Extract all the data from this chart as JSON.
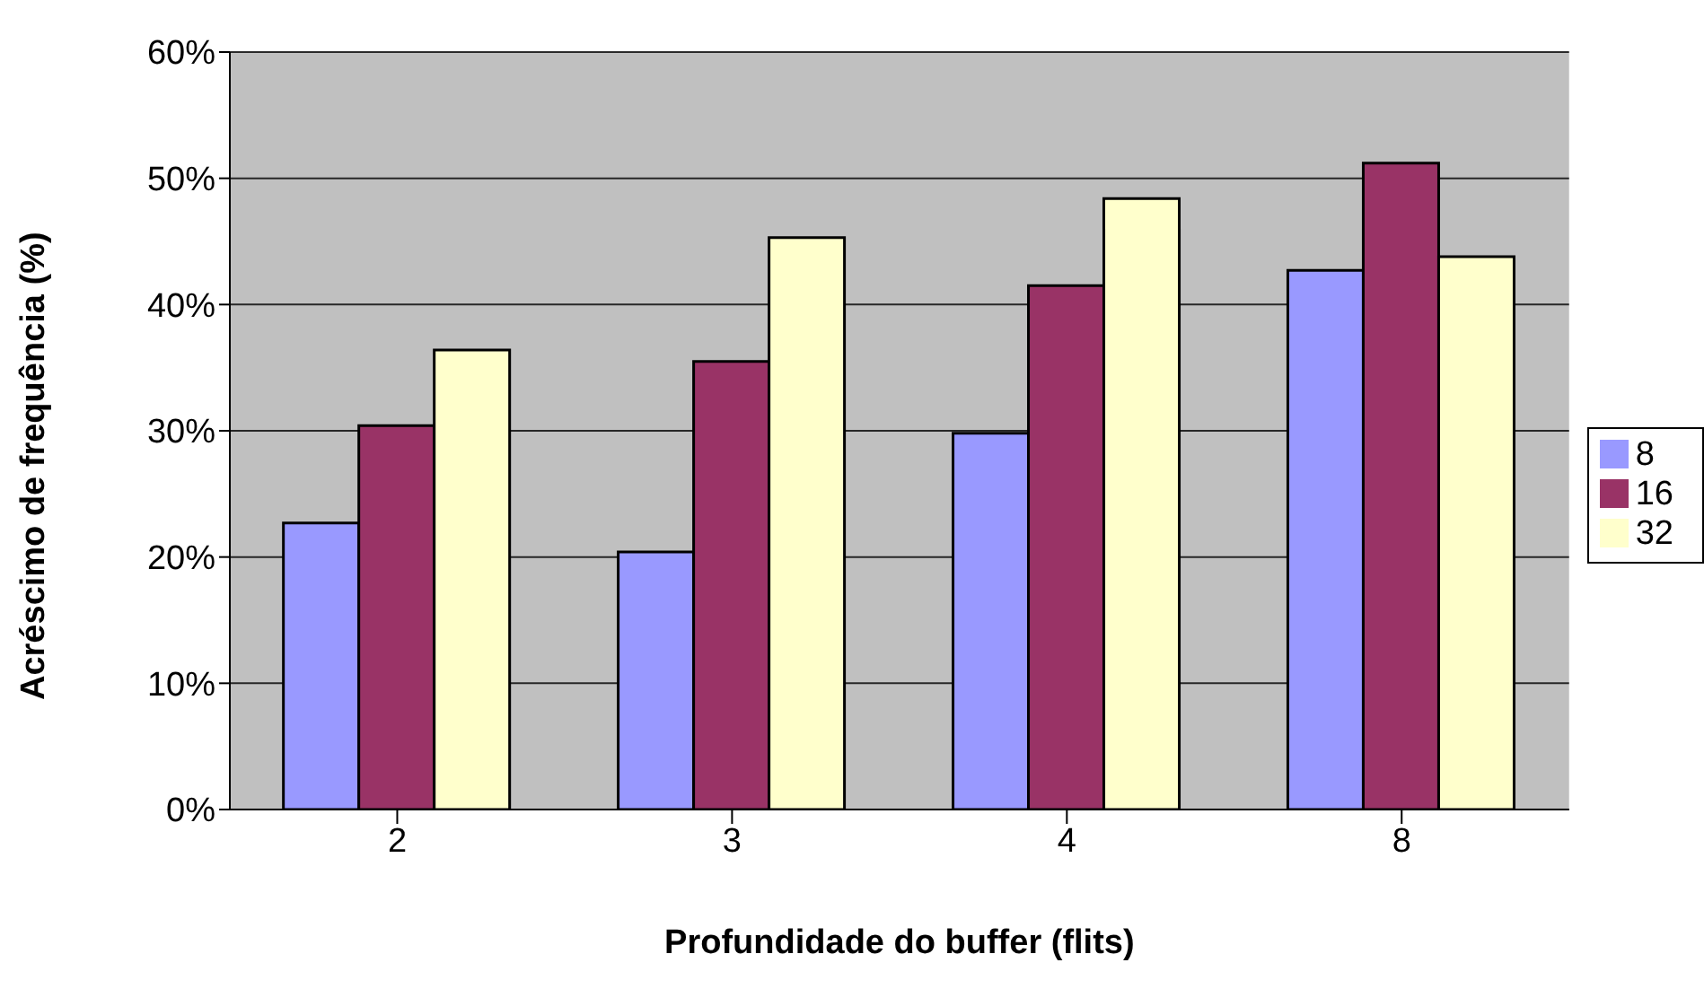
{
  "chart_data": {
    "type": "bar",
    "xlabel": "Profundidade do buffer (flits)",
    "ylabel": "Acréscimo de frequência (%)",
    "categories": [
      "2",
      "3",
      "4",
      "8"
    ],
    "series": [
      {
        "name": "8",
        "color": "#9999ff",
        "values": [
          22.7,
          20.4,
          29.8,
          42.7
        ]
      },
      {
        "name": "16",
        "color": "#993366",
        "values": [
          30.4,
          35.5,
          41.5,
          51.2
        ]
      },
      {
        "name": "32",
        "color": "#ffffcc",
        "values": [
          36.4,
          45.3,
          48.4,
          43.8
        ]
      }
    ],
    "ylim": [
      0,
      60
    ],
    "yticks": [
      {
        "value": 0,
        "label": "0%"
      },
      {
        "value": 10,
        "label": "10%"
      },
      {
        "value": 20,
        "label": "20%"
      },
      {
        "value": 30,
        "label": "30%"
      },
      {
        "value": 40,
        "label": "40%"
      },
      {
        "value": 50,
        "label": "50%"
      },
      {
        "value": 60,
        "label": "60%"
      }
    ],
    "grid": "y",
    "legend": "right"
  }
}
